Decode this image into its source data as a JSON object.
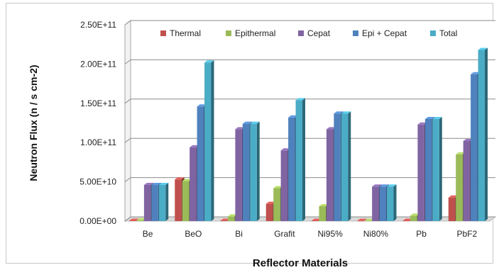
{
  "chart_data": {
    "type": "bar",
    "title": "",
    "xlabel": "Reflector Materials",
    "ylabel": "Neutron Flux (n / s cm-2)",
    "ylim": [
      0,
      250000000000
    ],
    "yticks": [
      0,
      50000000000,
      100000000000,
      150000000000,
      200000000000,
      250000000000
    ],
    "ytick_labels": [
      "0.00E+00",
      "5.00E+10",
      "1.00E+11",
      "1.50E+11",
      "2.00E+11",
      "2.50E+11"
    ],
    "categories": [
      "Be",
      "BeO",
      "Bi",
      "Grafit",
      "Ni95%",
      "Ni80%",
      "Pb",
      "PbF2"
    ],
    "grid": true,
    "legend_position": "top",
    "style": "3d-clustered-column",
    "series": [
      {
        "name": "Thermal",
        "color": "#c0504d",
        "values": [
          500000000,
          53000000000,
          500000000,
          22000000000,
          500000000,
          300000000,
          500000000,
          30000000000
        ]
      },
      {
        "name": "Epithermal",
        "color": "#9bbb59",
        "values": [
          1000000000,
          51000000000,
          6000000000,
          42000000000,
          19000000000,
          300000000,
          7000000000,
          85000000000
        ]
      },
      {
        "name": "Cepat",
        "color": "#8064a2",
        "values": [
          46000000000,
          94000000000,
          117000000000,
          90000000000,
          117000000000,
          44000000000,
          123000000000,
          102000000000
        ]
      },
      {
        "name": "Epi + Cepat",
        "color": "#4f81bd",
        "values": [
          46000000000,
          146000000000,
          124000000000,
          132000000000,
          137000000000,
          44000000000,
          130000000000,
          187000000000
        ]
      },
      {
        "name": "Total",
        "color": "#4bacc6",
        "values": [
          46000000000,
          202000000000,
          124000000000,
          154000000000,
          137000000000,
          44000000000,
          130000000000,
          218000000000
        ]
      }
    ]
  }
}
